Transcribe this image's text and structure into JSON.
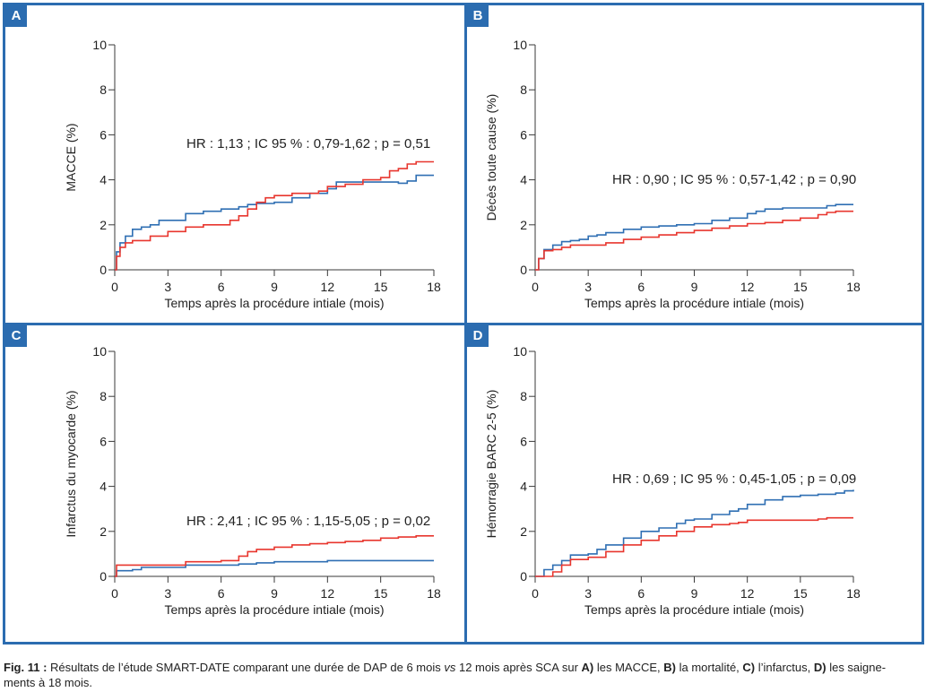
{
  "colors": {
    "frame": "#2b6cb0",
    "blue_series": "#2f6fb3",
    "red_series": "#e8362e"
  },
  "caption": {
    "fig": "Fig. 11 :",
    "t1": " Résultats de l’étude SMART-DATE comparant une durée de DAP de 6 mois ",
    "vs": "vs",
    "t2": " 12 mois après SCA sur ",
    "a": "A)",
    "t3": " les MACCE, ",
    "b": "B)",
    "t4": " la mortalité, ",
    "c": "C)",
    "t5": " l’infarctus, ",
    "d": "D)",
    "t6": " les saigne-",
    "t7": "ments à 18 mois."
  },
  "chart_data": [
    {
      "panel": "A",
      "type": "line",
      "xlabel": "Temps après la procédure intiale (mois)",
      "ylabel": "MACCE (%)",
      "xlim": [
        0,
        18
      ],
      "ylim": [
        0,
        10
      ],
      "xticks": [
        0,
        3,
        6,
        9,
        12,
        15,
        18
      ],
      "yticks": [
        0,
        2,
        4,
        6,
        8,
        10
      ],
      "annotation": "HR : 1,13 ; IC 95 % : 0,79-1,62 ; p = 0,51",
      "series": [
        {
          "color": "#2f6fb3",
          "x": [
            0,
            0.1,
            0.3,
            0.6,
            1,
            1.5,
            2,
            2.5,
            3,
            4,
            5,
            6,
            7,
            7.5,
            8,
            9,
            10,
            11,
            12,
            12.5,
            14,
            15,
            16,
            16.5,
            17,
            18
          ],
          "y": [
            0,
            0.8,
            1.2,
            1.5,
            1.8,
            1.9,
            2.0,
            2.2,
            2.2,
            2.5,
            2.6,
            2.7,
            2.8,
            2.9,
            2.95,
            3.0,
            3.2,
            3.4,
            3.6,
            3.9,
            3.9,
            3.9,
            3.85,
            3.95,
            4.2,
            4.2
          ]
        },
        {
          "color": "#e8362e",
          "x": [
            0,
            0.1,
            0.3,
            0.6,
            1,
            2,
            3,
            4,
            5,
            6,
            6.5,
            7,
            7.5,
            8,
            8.5,
            9,
            10,
            11,
            11.5,
            12,
            13,
            14,
            15,
            15.5,
            16,
            16.5,
            17,
            18
          ],
          "y": [
            0,
            0.6,
            1.0,
            1.2,
            1.3,
            1.5,
            1.7,
            1.9,
            2.0,
            2.0,
            2.2,
            2.4,
            2.7,
            3.0,
            3.2,
            3.3,
            3.4,
            3.4,
            3.5,
            3.7,
            3.8,
            4.0,
            4.1,
            4.4,
            4.5,
            4.7,
            4.8,
            4.8
          ]
        }
      ]
    },
    {
      "panel": "B",
      "type": "line",
      "xlabel": "Temps après la procédure intiale (mois)",
      "ylabel": "Décès toute cause (%)",
      "xlim": [
        0,
        18
      ],
      "ylim": [
        0,
        10
      ],
      "xticks": [
        0,
        3,
        6,
        9,
        12,
        15,
        18
      ],
      "yticks": [
        0,
        2,
        4,
        6,
        8,
        10
      ],
      "annotation": "HR : 0,90 ; IC 95 % : 0,57-1,42 ; p = 0,90",
      "series": [
        {
          "color": "#2f6fb3",
          "x": [
            0,
            0.2,
            0.5,
            1,
            1.5,
            2,
            2.5,
            3,
            3.5,
            4,
            5,
            6,
            7,
            8,
            9,
            10,
            11,
            12,
            12.5,
            13,
            14,
            15,
            16,
            16.5,
            17,
            18
          ],
          "y": [
            0,
            0.5,
            0.9,
            1.1,
            1.25,
            1.3,
            1.35,
            1.5,
            1.55,
            1.65,
            1.8,
            1.9,
            1.95,
            2.0,
            2.05,
            2.2,
            2.3,
            2.5,
            2.6,
            2.7,
            2.75,
            2.75,
            2.75,
            2.85,
            2.9,
            2.9
          ]
        },
        {
          "color": "#e8362e",
          "x": [
            0,
            0.2,
            0.5,
            1,
            1.5,
            2,
            3,
            4,
            5,
            6,
            7,
            8,
            9,
            10,
            11,
            12,
            13,
            14,
            15,
            16,
            16.5,
            17,
            18
          ],
          "y": [
            0,
            0.5,
            0.85,
            0.9,
            1.0,
            1.1,
            1.1,
            1.2,
            1.35,
            1.45,
            1.55,
            1.65,
            1.75,
            1.85,
            1.95,
            2.05,
            2.1,
            2.2,
            2.3,
            2.45,
            2.55,
            2.6,
            2.6
          ]
        }
      ]
    },
    {
      "panel": "C",
      "type": "line",
      "xlabel": "Temps après la procédure intiale (mois)",
      "ylabel": "Infarctus du myocarde (%)",
      "xlim": [
        0,
        18
      ],
      "ylim": [
        0,
        10
      ],
      "xticks": [
        0,
        3,
        6,
        9,
        12,
        15,
        18
      ],
      "yticks": [
        0,
        2,
        4,
        6,
        8,
        10
      ],
      "annotation": "HR : 2,41 ; IC 95 % : 1,15-5,05 ; p = 0,02",
      "series": [
        {
          "color": "#2f6fb3",
          "x": [
            0,
            0.1,
            1,
            1.5,
            3,
            4,
            6,
            7,
            8,
            9,
            12,
            14,
            18
          ],
          "y": [
            0,
            0.25,
            0.3,
            0.4,
            0.4,
            0.5,
            0.5,
            0.55,
            0.6,
            0.65,
            0.7,
            0.7,
            0.7
          ]
        },
        {
          "color": "#e8362e",
          "x": [
            0,
            0.1,
            3,
            4,
            6,
            7,
            7.5,
            8,
            9,
            10,
            11,
            12,
            13,
            14,
            15,
            16,
            17,
            18
          ],
          "y": [
            0,
            0.5,
            0.5,
            0.65,
            0.7,
            0.9,
            1.1,
            1.2,
            1.3,
            1.4,
            1.45,
            1.5,
            1.55,
            1.6,
            1.7,
            1.75,
            1.8,
            1.8
          ]
        }
      ]
    },
    {
      "panel": "D",
      "type": "line",
      "xlabel": "Temps après la procédure intiale (mois)",
      "ylabel": "Hémorragie BARC 2-5 (%)",
      "xlim": [
        0,
        18
      ],
      "ylim": [
        0,
        10
      ],
      "xticks": [
        0,
        3,
        6,
        9,
        12,
        15,
        18
      ],
      "yticks": [
        0,
        2,
        4,
        6,
        8,
        10
      ],
      "annotation": "HR : 0,69 ; IC 95 % : 0,45-1,05 ; p = 0,09",
      "series": [
        {
          "color": "#2f6fb3",
          "x": [
            0,
            0.5,
            1,
            1.5,
            2,
            3,
            3.5,
            4,
            5,
            6,
            7,
            8,
            8.5,
            9,
            10,
            11,
            11.5,
            12,
            13,
            14,
            15,
            16,
            16.5,
            17,
            17.5,
            18
          ],
          "y": [
            0,
            0.3,
            0.5,
            0.7,
            0.95,
            1.0,
            1.2,
            1.4,
            1.7,
            2.0,
            2.15,
            2.35,
            2.5,
            2.55,
            2.75,
            2.9,
            3.0,
            3.2,
            3.4,
            3.55,
            3.6,
            3.65,
            3.65,
            3.7,
            3.8,
            3.85
          ]
        },
        {
          "color": "#e8362e",
          "x": [
            0,
            0.8,
            1,
            1.5,
            2,
            3,
            4,
            5,
            6,
            7,
            8,
            9,
            10,
            11,
            11.5,
            12,
            13,
            15,
            16,
            16.5,
            17,
            18
          ],
          "y": [
            0,
            0,
            0.2,
            0.5,
            0.75,
            0.85,
            1.1,
            1.4,
            1.6,
            1.8,
            2.0,
            2.2,
            2.3,
            2.35,
            2.4,
            2.5,
            2.5,
            2.5,
            2.55,
            2.6,
            2.6,
            2.6
          ]
        }
      ]
    }
  ]
}
